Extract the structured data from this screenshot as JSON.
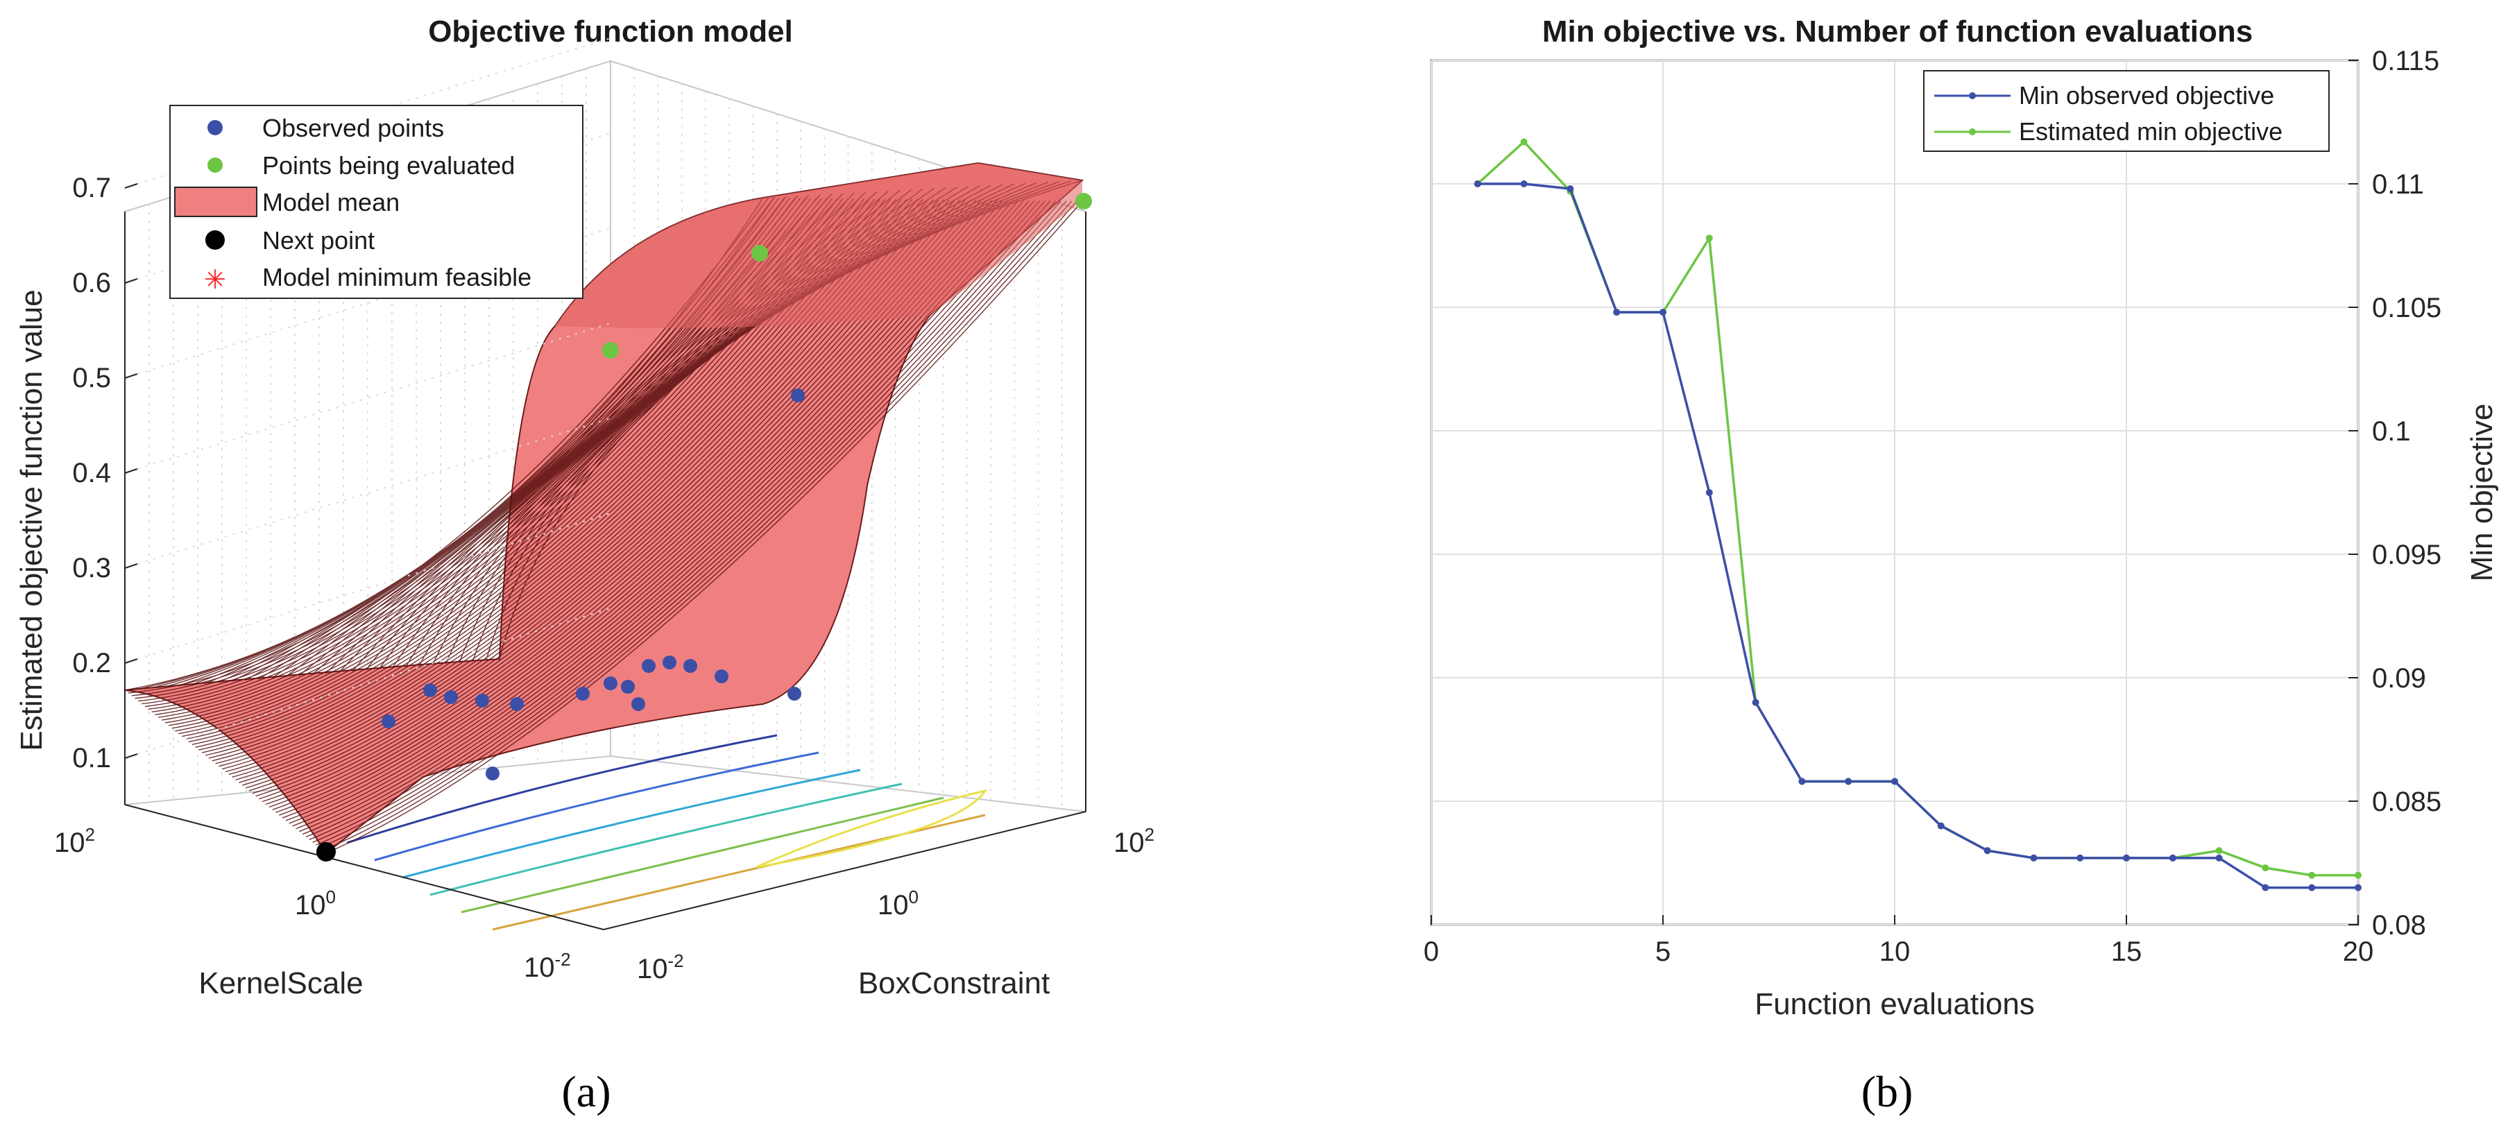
{
  "captions": {
    "a": "(a)",
    "b": "(b)"
  },
  "chart_data": [
    {
      "type": "surface",
      "title": "Objective function model",
      "xlabel": "KernelScale",
      "ylabel": "BoxConstraint",
      "zlabel": "Estimated objective function value",
      "z_ticks": [
        "0.1",
        "0.2",
        "0.3",
        "0.4",
        "0.5",
        "0.6",
        "0.7"
      ],
      "kernel_ticks": [
        {
          "base": "10",
          "exp": "2"
        },
        {
          "base": "10",
          "exp": "0"
        },
        {
          "base": "10",
          "exp": "-2"
        }
      ],
      "box_ticks": [
        {
          "base": "10",
          "exp": "-2"
        },
        {
          "base": "10",
          "exp": "0"
        },
        {
          "base": "10",
          "exp": "2"
        }
      ],
      "legend": [
        "Observed points",
        "Points being evaluated",
        "Model mean",
        "Next point",
        "Model minimum feasible"
      ],
      "colors": {
        "surface": "#f08080",
        "surface_edge": "#5a1010",
        "observed": "#3c4fa8",
        "evaluated": "#6cc644",
        "next": "#000000",
        "minimum": "#ff2020"
      }
    },
    {
      "type": "line",
      "title": "Min objective vs. Number of function evaluations",
      "xlabel": "Function evaluations",
      "ylabel": "Min objective",
      "xlim": [
        0,
        20
      ],
      "ylim": [
        0.08,
        0.115
      ],
      "x_ticks": [
        "0",
        "5",
        "10",
        "15",
        "20"
      ],
      "y_ticks": [
        "0.08",
        "0.085",
        "0.09",
        "0.095",
        "0.1",
        "0.105",
        "0.11",
        "0.115"
      ],
      "x": [
        1,
        2,
        3,
        4,
        5,
        6,
        7,
        8,
        9,
        10,
        11,
        12,
        13,
        14,
        15,
        16,
        17,
        18,
        19,
        20
      ],
      "series": [
        {
          "name": "Min observed objective",
          "color": "#3c4fa8",
          "values": [
            0.11,
            0.11,
            0.1098,
            0.1048,
            0.1048,
            0.0975,
            0.089,
            0.0858,
            0.0858,
            0.0858,
            0.084,
            0.083,
            0.0827,
            0.0827,
            0.0827,
            0.0827,
            0.0827,
            0.0815,
            0.0815,
            0.0815
          ]
        },
        {
          "name": "Estimated min objective",
          "color": "#6cc644",
          "values": [
            0.11,
            0.1117,
            0.1097,
            0.1048,
            0.1048,
            0.1078,
            0.089,
            0.0858,
            0.0858,
            0.0858,
            0.084,
            0.083,
            0.0827,
            0.0827,
            0.0827,
            0.0827,
            0.083,
            0.0823,
            0.082,
            0.082
          ]
        }
      ]
    }
  ]
}
